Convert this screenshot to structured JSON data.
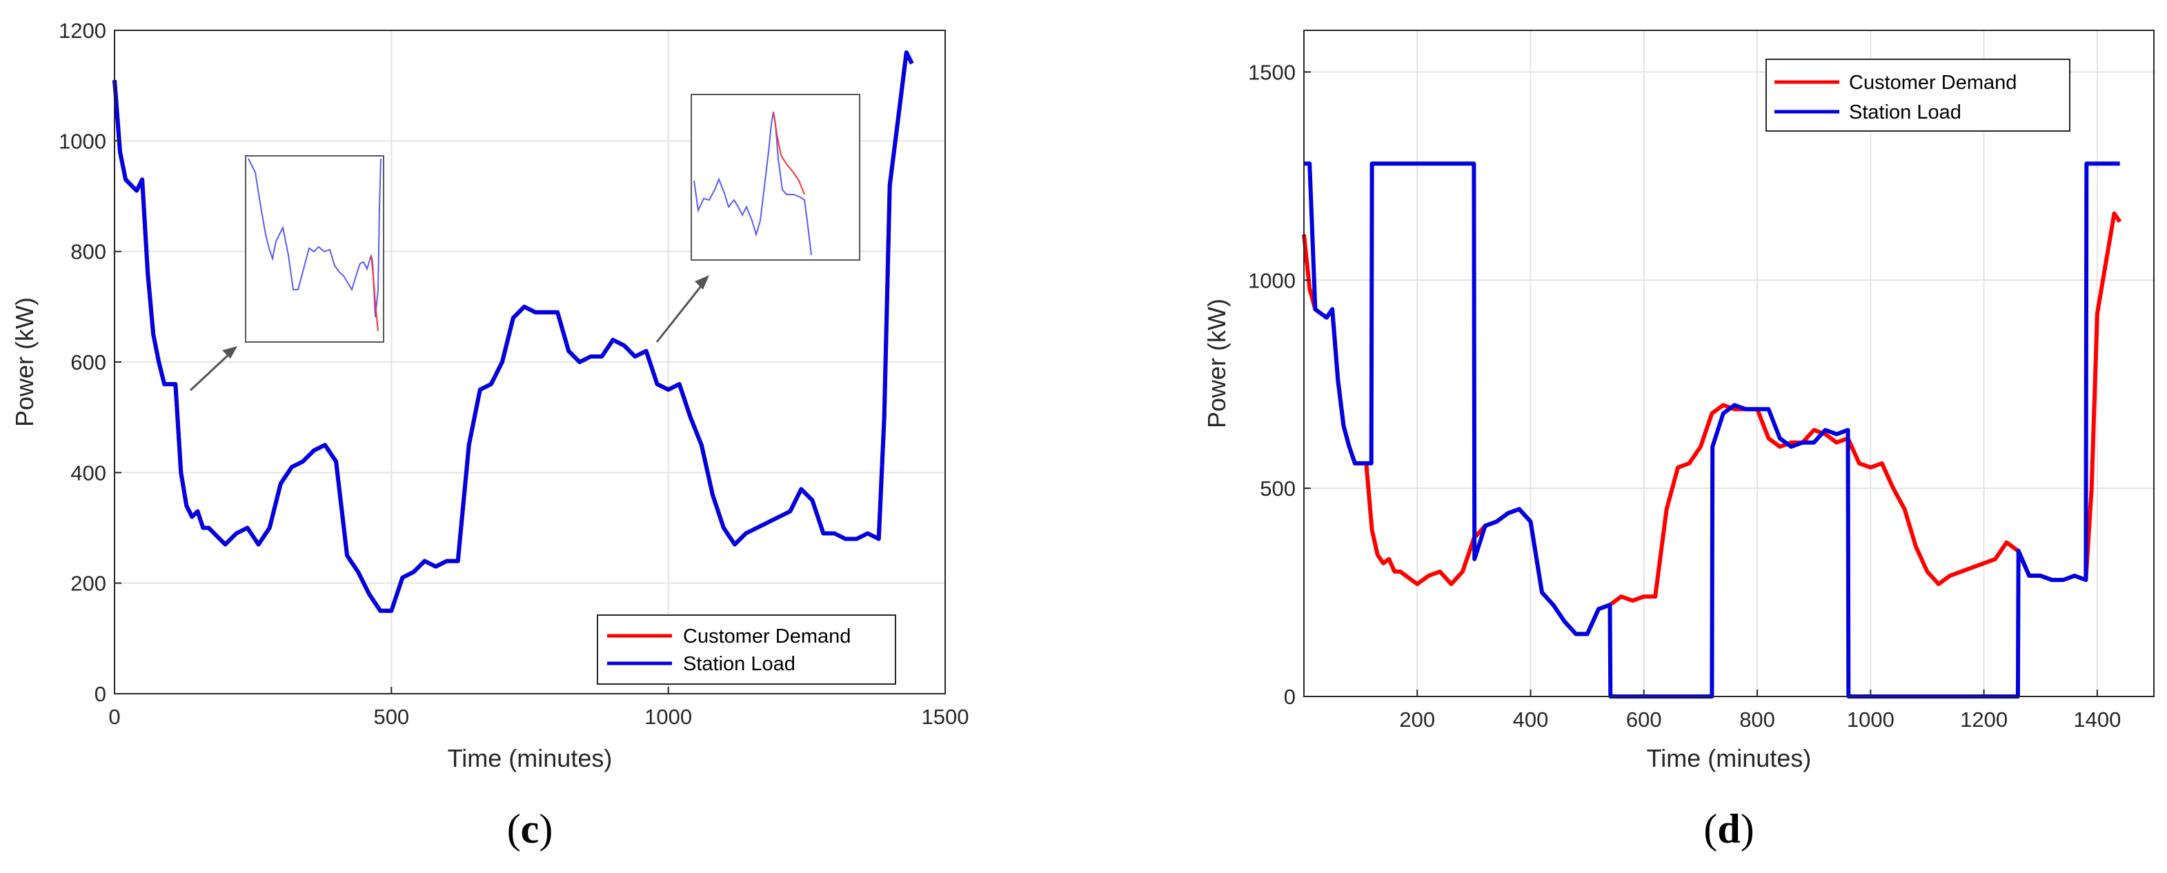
{
  "chart_data": [
    {
      "type": "line",
      "panel": "(c)",
      "xlabel": "Time (minutes)",
      "ylabel": "Power (kW)",
      "xlim": [
        0,
        1500
      ],
      "ylim": [
        0,
        1200
      ],
      "xticks": [
        "0",
        "500",
        "1000",
        "1500"
      ],
      "yticks": [
        "0",
        "200",
        "400",
        "600",
        "800",
        "1000",
        "1200"
      ],
      "grid": true,
      "legend_position": "bottom-right",
      "colors": {
        "Customer Demand": "#ff0000",
        "Station Load": "#0000e0"
      },
      "series": [
        {
          "name": "Customer Demand",
          "x": [
            0,
            10,
            20,
            30,
            40,
            50,
            60,
            70,
            80,
            90,
            100,
            110,
            120,
            130,
            140,
            150,
            160,
            170,
            180,
            200,
            220,
            240,
            260,
            280,
            300,
            320,
            340,
            360,
            380,
            400,
            420,
            440,
            460,
            480,
            500,
            520,
            540,
            560,
            580,
            600,
            620,
            640,
            660,
            680,
            700,
            720,
            740,
            760,
            780,
            800,
            820,
            840,
            860,
            880,
            900,
            920,
            940,
            960,
            980,
            1000,
            1020,
            1040,
            1060,
            1080,
            1100,
            1120,
            1140,
            1160,
            1180,
            1200,
            1220,
            1240,
            1260,
            1280,
            1300,
            1320,
            1340,
            1360,
            1380,
            1390,
            1400,
            1410,
            1420,
            1430,
            1440
          ],
          "y": [
            1110,
            980,
            930,
            920,
            910,
            930,
            760,
            650,
            600,
            560,
            560,
            560,
            400,
            340,
            320,
            330,
            300,
            300,
            290,
            270,
            290,
            300,
            270,
            300,
            380,
            410,
            420,
            440,
            450,
            420,
            250,
            220,
            180,
            150,
            150,
            210,
            220,
            240,
            230,
            240,
            240,
            450,
            550,
            560,
            600,
            680,
            700,
            690,
            690,
            690,
            620,
            600,
            610,
            610,
            640,
            630,
            610,
            620,
            560,
            550,
            560,
            500,
            450,
            360,
            300,
            270,
            290,
            300,
            310,
            320,
            330,
            370,
            350,
            290,
            290,
            280,
            280,
            290,
            280,
            500,
            920,
            1000,
            1080,
            1160,
            1140
          ]
        },
        {
          "name": "Station Load",
          "x": [
            0,
            10,
            20,
            30,
            40,
            50,
            60,
            70,
            80,
            90,
            100,
            110,
            120,
            130,
            140,
            150,
            160,
            170,
            180,
            200,
            220,
            240,
            260,
            280,
            300,
            320,
            340,
            360,
            380,
            400,
            420,
            440,
            460,
            480,
            500,
            520,
            540,
            560,
            580,
            600,
            620,
            640,
            660,
            680,
            700,
            720,
            740,
            760,
            780,
            800,
            820,
            840,
            860,
            880,
            900,
            920,
            940,
            960,
            980,
            1000,
            1020,
            1040,
            1060,
            1080,
            1100,
            1120,
            1140,
            1160,
            1180,
            1200,
            1220,
            1240,
            1260,
            1280,
            1300,
            1320,
            1340,
            1360,
            1380,
            1390,
            1400,
            1410,
            1420,
            1430,
            1440
          ],
          "y": [
            1110,
            980,
            930,
            920,
            910,
            930,
            760,
            650,
            600,
            560,
            560,
            560,
            400,
            340,
            320,
            330,
            300,
            300,
            290,
            270,
            290,
            300,
            270,
            300,
            380,
            410,
            420,
            440,
            450,
            420,
            250,
            220,
            180,
            150,
            150,
            210,
            220,
            240,
            230,
            240,
            240,
            450,
            550,
            560,
            600,
            680,
            700,
            690,
            690,
            690,
            620,
            600,
            610,
            610,
            640,
            630,
            610,
            620,
            560,
            550,
            560,
            500,
            450,
            360,
            300,
            270,
            290,
            300,
            310,
            320,
            330,
            370,
            350,
            290,
            290,
            280,
            280,
            290,
            280,
            500,
            920,
            1000,
            1080,
            1160,
            1140
          ]
        }
      ]
    },
    {
      "type": "line",
      "panel": "(d)",
      "xlabel": "Time (minutes)",
      "ylabel": "Power (kW)",
      "xlim": [
        0,
        1500
      ],
      "ylim": [
        0,
        1600
      ],
      "xticks": [
        "200",
        "400",
        "600",
        "800",
        "1000",
        "1200",
        "1400"
      ],
      "yticks": [
        "0",
        "500",
        "1000",
        "1500"
      ],
      "grid": true,
      "legend_position": "top",
      "colors": {
        "Customer Demand": "#ff0000",
        "Station Load": "#0000e0"
      },
      "series": [
        {
          "name": "Customer Demand",
          "x": [
            0,
            10,
            20,
            30,
            40,
            50,
            60,
            70,
            80,
            90,
            100,
            110,
            120,
            130,
            140,
            150,
            160,
            170,
            180,
            200,
            220,
            240,
            260,
            280,
            300,
            320,
            340,
            360,
            380,
            400,
            420,
            440,
            460,
            480,
            500,
            520,
            540,
            560,
            580,
            600,
            620,
            640,
            660,
            680,
            700,
            720,
            740,
            760,
            780,
            800,
            820,
            840,
            860,
            880,
            900,
            920,
            940,
            960,
            980,
            1000,
            1020,
            1040,
            1060,
            1080,
            1100,
            1120,
            1140,
            1160,
            1180,
            1200,
            1220,
            1240,
            1260,
            1280,
            1300,
            1320,
            1340,
            1360,
            1380,
            1390,
            1400,
            1410,
            1420,
            1430,
            1440
          ],
          "y": [
            1110,
            980,
            930,
            920,
            910,
            930,
            760,
            650,
            600,
            560,
            560,
            560,
            400,
            340,
            320,
            330,
            300,
            300,
            290,
            270,
            290,
            300,
            270,
            300,
            380,
            410,
            420,
            440,
            450,
            420,
            250,
            220,
            180,
            150,
            150,
            210,
            220,
            240,
            230,
            240,
            240,
            450,
            550,
            560,
            600,
            680,
            700,
            690,
            690,
            690,
            620,
            600,
            610,
            610,
            640,
            630,
            610,
            620,
            560,
            550,
            560,
            500,
            450,
            360,
            300,
            270,
            290,
            300,
            310,
            320,
            330,
            370,
            350,
            290,
            290,
            280,
            280,
            290,
            280,
            500,
            920,
            1000,
            1080,
            1160,
            1140
          ]
        },
        {
          "name": "Station Load",
          "x": [
            0,
            10,
            20,
            30,
            40,
            50,
            60,
            70,
            80,
            90,
            100,
            110,
            119,
            120,
            300,
            301,
            320,
            340,
            360,
            380,
            400,
            420,
            440,
            460,
            480,
            500,
            520,
            540,
            541,
            720,
            721,
            740,
            760,
            780,
            800,
            820,
            840,
            860,
            880,
            900,
            920,
            940,
            960,
            961,
            1260,
            1261,
            1280,
            1300,
            1320,
            1340,
            1360,
            1380,
            1381,
            1440
          ],
          "y": [
            1280,
            1280,
            930,
            920,
            910,
            930,
            760,
            650,
            600,
            560,
            560,
            560,
            560,
            1280,
            1280,
            330,
            410,
            420,
            440,
            450,
            420,
            250,
            220,
            180,
            150,
            150,
            210,
            220,
            0,
            0,
            600,
            680,
            700,
            690,
            690,
            690,
            620,
            600,
            610,
            610,
            640,
            630,
            640,
            0,
            0,
            350,
            290,
            290,
            280,
            280,
            290,
            280,
            1280,
            1280
          ]
        }
      ]
    }
  ],
  "captions": {
    "c": {
      "open": "(",
      "letter": "c",
      "close": ")"
    },
    "d": {
      "open": "(",
      "letter": "d",
      "close": ")"
    }
  },
  "colors": {
    "demand": "#ff0000",
    "load": "#0000e0",
    "grid": "#e4e4e4",
    "axis": "#262626"
  }
}
